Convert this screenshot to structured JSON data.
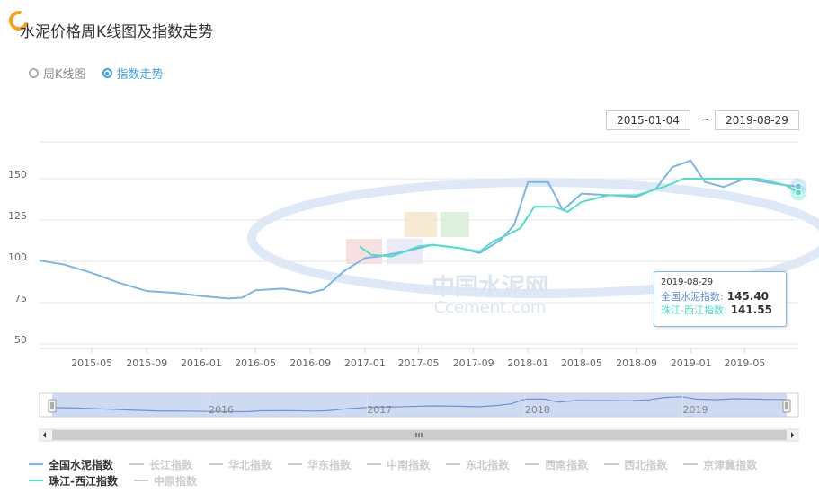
{
  "page": {
    "title": "水泥价格周K线图及指数走势",
    "modes": [
      {
        "label": "周K线图",
        "selected": false
      },
      {
        "label": "指数走势",
        "selected": true
      }
    ],
    "date_range": {
      "start": "2015-01-04",
      "separator": "~",
      "end": "2019-08-29"
    },
    "watermark": {
      "cn": "中国水泥网",
      "en": "Ccement.com"
    },
    "colors": {
      "series_a": "#7cb5ec",
      "series_b": "#4fe0c8",
      "navigator_fill": "#c5d3ee",
      "accent": "#3ea0e6"
    }
  },
  "tooltip": {
    "date": "2019-08-29",
    "rows": [
      {
        "name": "全国水泥指数:",
        "value": "145.40"
      },
      {
        "name": "珠江-西江指数:",
        "value": "141.55"
      }
    ]
  },
  "legend": [
    {
      "label": "全国水泥指数",
      "active": true
    },
    {
      "label": "长江指数",
      "active": false
    },
    {
      "label": "华北指数",
      "active": false
    },
    {
      "label": "华东指数",
      "active": false
    },
    {
      "label": "中南指数",
      "active": false
    },
    {
      "label": "东北指数",
      "active": false
    },
    {
      "label": "西南指数",
      "active": false
    },
    {
      "label": "西北指数",
      "active": false
    },
    {
      "label": "京津冀指数",
      "active": false
    },
    {
      "label": "珠江-西江指数",
      "active": true
    },
    {
      "label": "中原指数",
      "active": false
    }
  ],
  "chart_data": {
    "type": "line",
    "title": "",
    "xlabel": "",
    "ylabel": "",
    "ylim": [
      50,
      150
    ],
    "y_ticks": [
      50,
      75,
      100,
      125,
      150
    ],
    "x_ticks": [
      "2015-05",
      "2015-09",
      "2016-01",
      "2016-05",
      "2016-09",
      "2017-01",
      "2017-05",
      "2017-09",
      "2018-01",
      "2018-05",
      "2018-09",
      "2019-01",
      "2019-05"
    ],
    "navigator_ticks": [
      "2016",
      "2017",
      "2018",
      "2019"
    ],
    "grid": true,
    "legend_position": "bottom",
    "series": [
      {
        "name": "全国水泥指数",
        "x": [
          "2015-01-04",
          "2015-03-01",
          "2015-05-01",
          "2015-07-01",
          "2015-09-01",
          "2015-11-01",
          "2016-01-01",
          "2016-03-01",
          "2016-04-01",
          "2016-05-01",
          "2016-07-01",
          "2016-09-01",
          "2016-10-01",
          "2016-11-15",
          "2017-01-01",
          "2017-02-01",
          "2017-04-01",
          "2017-06-01",
          "2017-08-01",
          "2017-09-15",
          "2017-11-01",
          "2017-12-01",
          "2018-01-01",
          "2018-02-15",
          "2018-03-20",
          "2018-05-01",
          "2018-07-01",
          "2018-09-01",
          "2018-10-15",
          "2018-11-20",
          "2018-12-31",
          "2019-02-01",
          "2019-03-15",
          "2019-05-01",
          "2019-06-15",
          "2019-08-01",
          "2019-08-29"
        ],
        "values": [
          100.5,
          98,
          93,
          87,
          82,
          81,
          79,
          77.5,
          78,
          82.5,
          83.5,
          81,
          83,
          94,
          102,
          103,
          106,
          110,
          108,
          105,
          113,
          122,
          148,
          148,
          131,
          141,
          140,
          139,
          144,
          157,
          161,
          148,
          145,
          150,
          148,
          146,
          145.4
        ]
      },
      {
        "name": "珠江-西江指数",
        "x": [
          "2016-12-20",
          "2017-01-15",
          "2017-03-01",
          "2017-04-01",
          "2017-05-01",
          "2017-06-01",
          "2017-08-01",
          "2017-09-15",
          "2017-10-15",
          "2017-11-15",
          "2017-12-15",
          "2018-01-15",
          "2018-03-01",
          "2018-03-31",
          "2018-05-01",
          "2018-07-01",
          "2018-09-01",
          "2018-11-01",
          "2018-12-15",
          "2019-03-01",
          "2019-06-01",
          "2019-08-01",
          "2019-08-29"
        ],
        "values": [
          109,
          104,
          103,
          106,
          109,
          110,
          108,
          106,
          112,
          116,
          120,
          133,
          133,
          130,
          136,
          140,
          140,
          145,
          150,
          150,
          150,
          146,
          141.55
        ]
      }
    ]
  }
}
